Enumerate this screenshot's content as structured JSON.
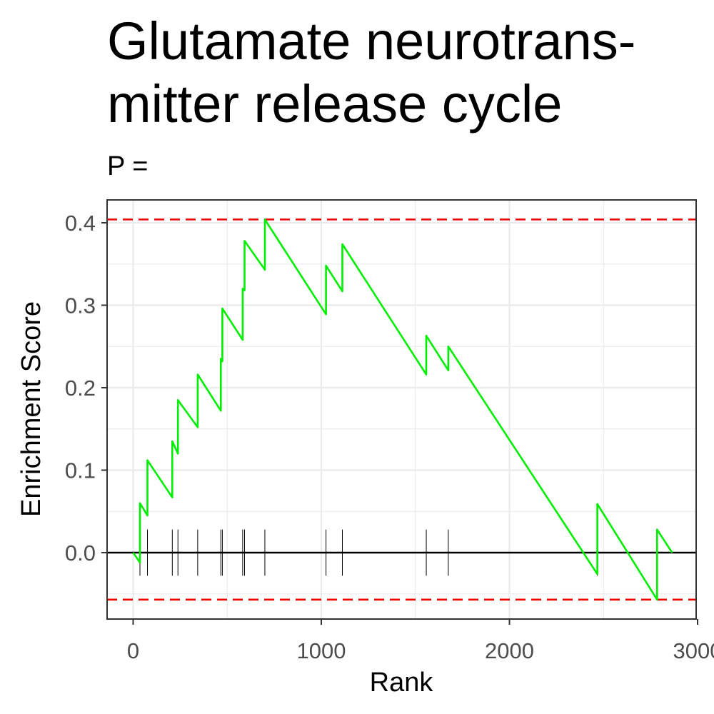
{
  "chart_data": {
    "type": "line",
    "title": "Glutamate neurotrans-\nmitter release cycle",
    "subtitle": "P =",
    "xlabel": "Rank",
    "ylabel": "Enrichment Score",
    "xlim": [
      -140,
      3000
    ],
    "ylim": [
      -0.08,
      0.42
    ],
    "x_ticks": [
      0,
      1000,
      2000,
      3000
    ],
    "x_tick_labels": [
      "0",
      "1000",
      "2000",
      "3000"
    ],
    "y_ticks": [
      0.0,
      0.1,
      0.2,
      0.3,
      0.4
    ],
    "y_tick_labels": [
      "0.0",
      "0.1",
      "0.2",
      "0.3",
      "0.4"
    ],
    "grid": true,
    "colors": {
      "curve": "#00ee00",
      "threshold": "#ee0000",
      "zero_line": "#000000",
      "grid": "#ebebeb",
      "ticks": "#4d4d4d"
    },
    "thresholds": [
      0.404,
      -0.057
    ],
    "zero_line": 0,
    "series": [
      {
        "values": [
          [
            0,
            0.0
          ],
          [
            36,
            -0.012
          ],
          [
            36,
            0.06
          ],
          [
            76,
            0.045
          ],
          [
            76,
            0.112
          ],
          [
            208,
            0.067
          ],
          [
            208,
            0.135
          ],
          [
            238,
            0.12
          ],
          [
            238,
            0.185
          ],
          [
            343,
            0.152
          ],
          [
            343,
            0.216
          ],
          [
            466,
            0.172
          ],
          [
            466,
            0.235
          ],
          [
            474,
            0.232
          ],
          [
            474,
            0.296
          ],
          [
            582,
            0.258
          ],
          [
            582,
            0.32
          ],
          [
            592,
            0.318
          ],
          [
            592,
            0.378
          ],
          [
            700,
            0.343
          ],
          [
            700,
            0.404
          ],
          [
            1025,
            0.289
          ],
          [
            1025,
            0.348
          ],
          [
            1112,
            0.317
          ],
          [
            1112,
            0.374
          ],
          [
            1558,
            0.216
          ],
          [
            1558,
            0.263
          ],
          [
            1675,
            0.221
          ],
          [
            1675,
            0.25
          ],
          [
            2467,
            -0.026
          ],
          [
            2467,
            0.059
          ],
          [
            2785,
            -0.057
          ],
          [
            2785,
            0.028
          ],
          [
            2865,
            0.0
          ]
        ]
      }
    ],
    "hit_ranks": [
      36,
      76,
      208,
      238,
      343,
      466,
      474,
      582,
      592,
      700,
      1025,
      1112,
      1558,
      1675,
      2467,
      2785
    ],
    "hit_mark_range": [
      -0.028,
      0.028
    ]
  }
}
